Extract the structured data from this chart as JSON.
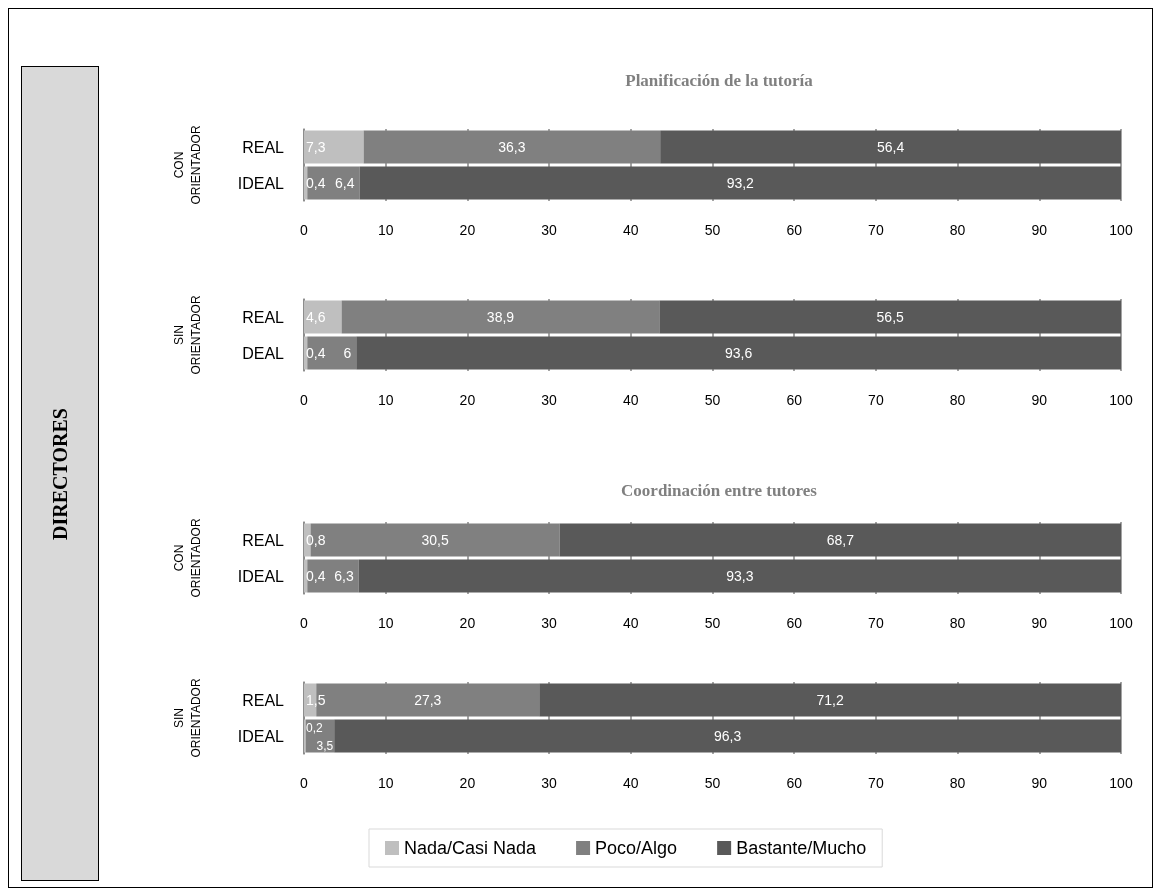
{
  "chart_data": [
    {
      "type": "bar",
      "orientation": "horizontal",
      "stacked": true,
      "title": "Planificación de la tutoría",
      "ylabel": "CON ORIENTADOR",
      "categories": [
        "REAL",
        "IDEAL"
      ],
      "annotations": [
        "DIRECTORES"
      ],
      "series": [
        {
          "color": "#bfbfbf",
          "values": [
            7.3,
            0.4
          ],
          "value_labels": [
            "7,3",
            "0,4"
          ]
        },
        {
          "color": "#808080",
          "values": [
            36.3,
            6.4
          ],
          "value_labels": [
            "36,3",
            "6,4"
          ]
        },
        {
          "color": "#595959",
          "values": [
            56.4,
            93.2
          ],
          "value_labels": [
            "56,4",
            "93,2"
          ]
        }
      ],
      "xlim": [
        0,
        100
      ],
      "xticks": [
        0,
        10,
        20,
        30,
        40,
        50,
        60,
        70,
        80,
        90,
        100
      ],
      "grid": "x"
    },
    {
      "type": "bar",
      "orientation": "horizontal",
      "stacked": true,
      "ylabel": "SIN ORIENTADOR",
      "categories": [
        "REAL",
        "DEAL"
      ],
      "series": [
        {
          "color": "#bfbfbf",
          "values": [
            4.6,
            0.4
          ],
          "value_labels": [
            "4,6",
            "0,4"
          ]
        },
        {
          "color": "#808080",
          "values": [
            38.9,
            6
          ],
          "value_labels": [
            "38,9",
            "6"
          ]
        },
        {
          "color": "#595959",
          "values": [
            56.5,
            93.6
          ],
          "value_labels": [
            "56,5",
            "93,6"
          ]
        }
      ],
      "xlim": [
        0,
        100
      ],
      "xticks": [
        0,
        10,
        20,
        30,
        40,
        50,
        60,
        70,
        80,
        90,
        100
      ],
      "grid": "x"
    },
    {
      "type": "bar",
      "orientation": "horizontal",
      "stacked": true,
      "title": "Coordinación entre tutores",
      "ylabel": "CON ORIENTADOR",
      "categories": [
        "REAL",
        "IDEAL"
      ],
      "series": [
        {
          "color": "#bfbfbf",
          "values": [
            0.8,
            0.4
          ],
          "value_labels": [
            "0,8",
            "0,4"
          ]
        },
        {
          "color": "#808080",
          "values": [
            30.5,
            6.3
          ],
          "value_labels": [
            "30,5",
            "6,3"
          ]
        },
        {
          "color": "#595959",
          "values": [
            68.7,
            93.3
          ],
          "value_labels": [
            "68,7",
            "93,3"
          ]
        }
      ],
      "xlim": [
        0,
        100
      ],
      "xticks": [
        0,
        10,
        20,
        30,
        40,
        50,
        60,
        70,
        80,
        90,
        100
      ],
      "grid": "x"
    },
    {
      "type": "bar",
      "orientation": "horizontal",
      "stacked": true,
      "ylabel": "SIN ORIENTADOR",
      "categories": [
        "REAL",
        "IDEAL"
      ],
      "legend": "bottom",
      "series": [
        {
          "name": "Nada/Casi Nada",
          "color": "#bfbfbf",
          "values": [
            1.5,
            0.2
          ],
          "value_labels": [
            "1,5",
            "0,2"
          ]
        },
        {
          "name": "Poco/Algo",
          "color": "#808080",
          "values": [
            27.3,
            3.5
          ],
          "value_labels": [
            "27,3",
            "3,5"
          ]
        },
        {
          "name": "Bastante/Mucho",
          "color": "#595959",
          "values": [
            71.2,
            96.3
          ],
          "value_labels": [
            "71,2",
            "96,3"
          ]
        }
      ],
      "xlim": [
        0,
        100
      ],
      "xticks": [
        0,
        10,
        20,
        30,
        40,
        50,
        60,
        70,
        80,
        90,
        100
      ],
      "grid": "x"
    }
  ]
}
